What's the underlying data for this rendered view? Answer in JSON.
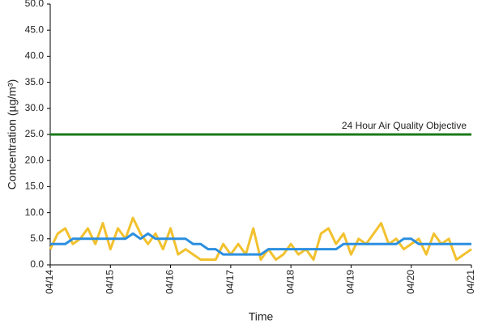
{
  "chart_data": {
    "type": "line",
    "xlabel": "Time",
    "ylabel": "Concentration (µg/m³)",
    "x": [
      0,
      3,
      6,
      9,
      12,
      15,
      18,
      21,
      24,
      27,
      30,
      33,
      36,
      39,
      42,
      45,
      48,
      51,
      54,
      57,
      60,
      63,
      66,
      69,
      72,
      75,
      78,
      81,
      84,
      87,
      90,
      93,
      96,
      99,
      102,
      105,
      108,
      111,
      114,
      117,
      120,
      123,
      126,
      129,
      132,
      135,
      138,
      141,
      144,
      147,
      150,
      153,
      156,
      159,
      162,
      165,
      168
    ],
    "series": [
      {
        "color": "#f2c12e",
        "values": [
          3,
          6,
          7,
          4,
          5,
          7,
          4,
          8,
          3,
          7,
          5,
          9,
          6,
          4,
          6,
          3,
          7,
          2,
          3,
          2,
          1,
          1,
          1,
          4,
          2,
          4,
          2,
          7,
          1,
          3,
          1,
          2,
          4,
          2,
          3,
          1,
          6,
          7,
          4,
          6,
          2,
          5,
          4,
          6,
          8,
          4,
          5,
          3,
          4,
          5,
          2,
          6,
          4,
          5,
          1,
          2,
          3
        ]
      },
      {
        "color": "#2b8fe0",
        "values": [
          4,
          4,
          4,
          5,
          5,
          5,
          5,
          5,
          5,
          5,
          5,
          6,
          5,
          6,
          5,
          5,
          5,
          5,
          5,
          4,
          4,
          3,
          3,
          2,
          2,
          2,
          2,
          2,
          2,
          3,
          3,
          3,
          3,
          3,
          3,
          3,
          3,
          3,
          3,
          4,
          4,
          4,
          4,
          4,
          4,
          4,
          4,
          5,
          5,
          4,
          4,
          4,
          4,
          4,
          4,
          4,
          4
        ]
      }
    ],
    "objective": {
      "value": 25,
      "label": "24 Hour Air Quality Objective",
      "color": "#1a7a1a"
    },
    "xlim": [
      0,
      168
    ],
    "xticks": [
      {
        "value": 0,
        "label": "04/14"
      },
      {
        "value": 24,
        "label": "04/15"
      },
      {
        "value": 48,
        "label": "04/16"
      },
      {
        "value": 72,
        "label": "04/17"
      },
      {
        "value": 96,
        "label": "04/18"
      },
      {
        "value": 120,
        "label": "04/19"
      },
      {
        "value": 144,
        "label": "04/20"
      },
      {
        "value": 168,
        "label": "04/21"
      }
    ],
    "ylim": [
      0,
      50
    ],
    "yticks": [
      {
        "value": 0,
        "label": "0.0"
      },
      {
        "value": 5,
        "label": "5.0"
      },
      {
        "value": 10,
        "label": "10.0"
      },
      {
        "value": 15,
        "label": "15.0"
      },
      {
        "value": 20,
        "label": "20.0"
      },
      {
        "value": 25,
        "label": "25.0"
      },
      {
        "value": 30,
        "label": "30.0"
      },
      {
        "value": 35,
        "label": "35.0"
      },
      {
        "value": 40,
        "label": "40.0"
      },
      {
        "value": 45,
        "label": "45.0"
      },
      {
        "value": 50,
        "label": "50.0"
      }
    ]
  }
}
